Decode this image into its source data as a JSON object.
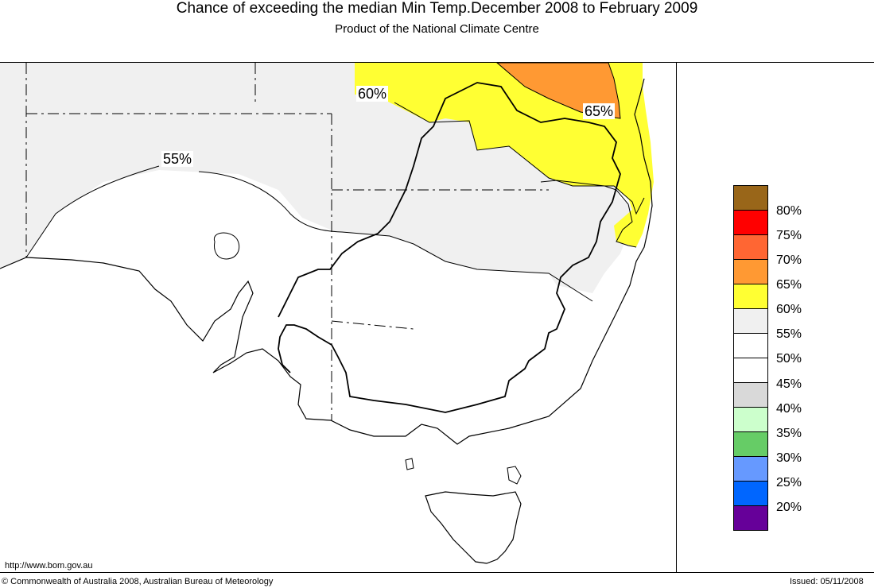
{
  "header": {
    "title": "Chance of exceeding the median Min Temp.December 2008 to February 2009",
    "subtitle": "Product of the National Climate Centre"
  },
  "map": {
    "contour_labels": [
      "60%",
      "65%",
      "55%"
    ],
    "region_colors": {
      "60-65": "#FFFF33",
      "65-70": "#FF9933",
      "55-60": "#F0F0F0",
      "50-55": "#FFFFFF",
      "land_outline": "#000000"
    }
  },
  "legend": {
    "items": [
      {
        "label": "80%",
        "color": "#996619"
      },
      {
        "label": "75%",
        "color": "#FF0000"
      },
      {
        "label": "70%",
        "color": "#FF6633"
      },
      {
        "label": "65%",
        "color": "#FF9933"
      },
      {
        "label": "60%",
        "color": "#FFFF33"
      },
      {
        "label": "55%",
        "color": "#F0F0F0"
      },
      {
        "label": "50%",
        "color": "#FFFFFF"
      },
      {
        "label": "45%",
        "color": "#FFFFFF"
      },
      {
        "label": "40%",
        "color": "#D9D9D9"
      },
      {
        "label": "35%",
        "color": "#CCFFCC"
      },
      {
        "label": "30%",
        "color": "#66CC66"
      },
      {
        "label": "25%",
        "color": "#6699FF"
      },
      {
        "label": "20%",
        "color": "#0066FF"
      },
      {
        "label": "",
        "color": "#660099"
      }
    ]
  },
  "footer": {
    "url": "http://www.bom.gov.au",
    "copyright": "© Commonwealth of Australia 2008, Australian Bureau of Meteorology",
    "issued": "Issued: 05/11/2008"
  }
}
